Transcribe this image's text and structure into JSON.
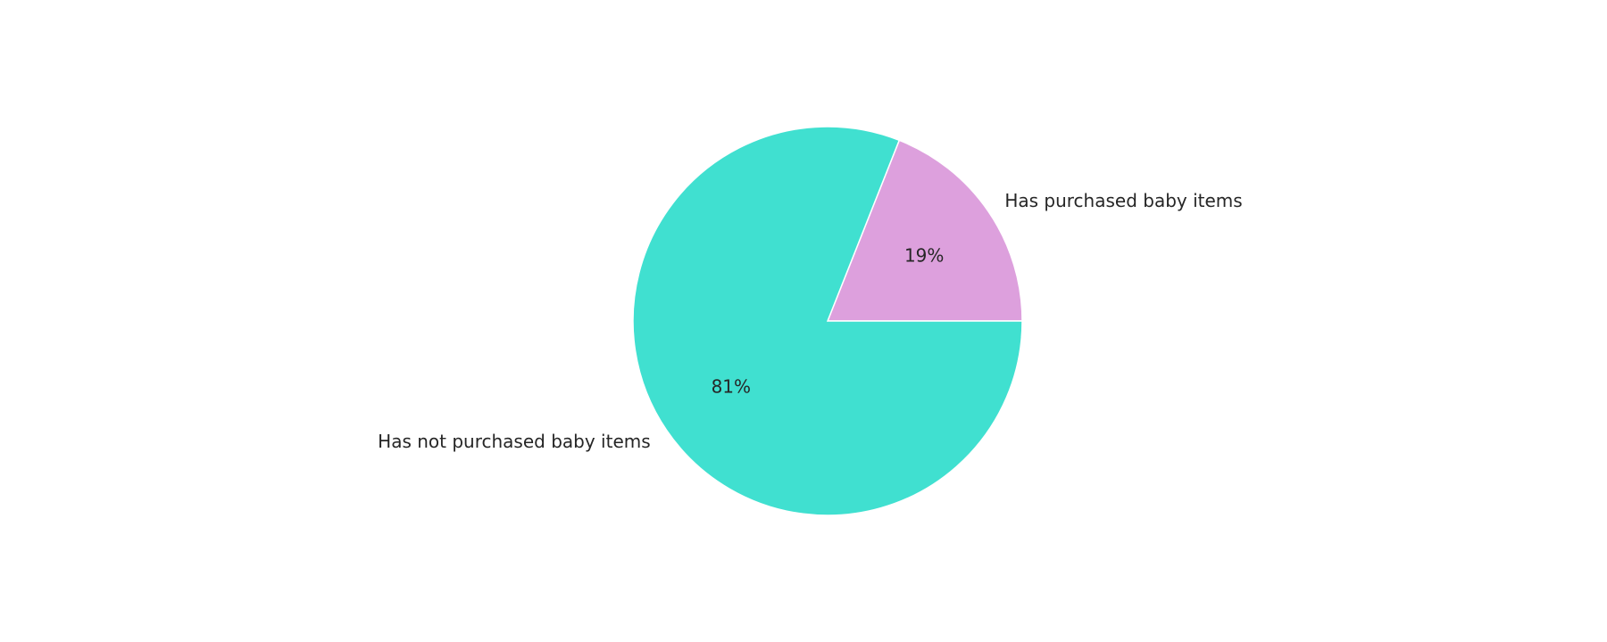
{
  "chart_data": {
    "type": "pie",
    "title": "",
    "categories": [
      "Has purchased baby items",
      "Has not purchased baby items"
    ],
    "values": [
      19,
      81
    ],
    "value_labels": [
      "19%",
      "81%"
    ],
    "colors": [
      "#DDA0DD",
      "#40E0D0"
    ],
    "start_angle_deg": 0,
    "direction": "counterclockwise",
    "edge_color": "#ffffff",
    "legend": "none"
  }
}
